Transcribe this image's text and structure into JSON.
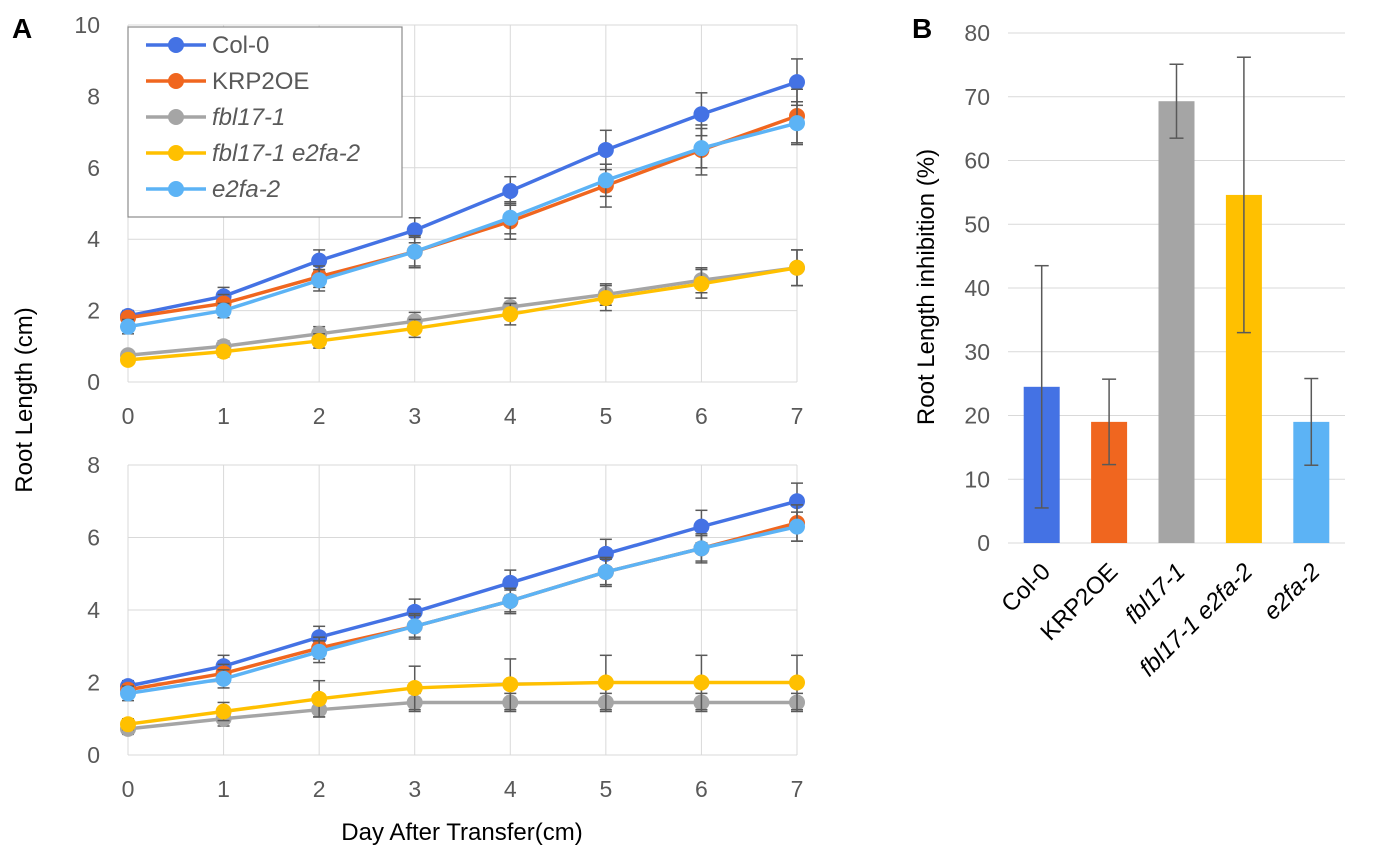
{
  "panels": {
    "a": "A",
    "b": "B"
  },
  "chart_data": [
    {
      "id": "A-top",
      "type": "line",
      "x": [
        0,
        1,
        2,
        3,
        4,
        5,
        6,
        7
      ],
      "ylim": [
        0,
        10
      ],
      "yticks": [
        0,
        2,
        4,
        6,
        8,
        10
      ],
      "grid": true,
      "legend": "top-left",
      "series": [
        {
          "name": "Col-0",
          "color": "#4472E4",
          "values": [
            1.85,
            2.4,
            3.4,
            4.25,
            5.35,
            6.5,
            7.5,
            8.4
          ],
          "err": [
            0.15,
            0.25,
            0.3,
            0.35,
            0.4,
            0.55,
            0.6,
            0.65
          ]
        },
        {
          "name": "KRP2OE",
          "color": "#F0661F",
          "values": [
            1.8,
            2.2,
            2.95,
            3.65,
            4.5,
            5.5,
            6.5,
            7.45
          ],
          "err": [
            0.15,
            0.25,
            0.3,
            0.4,
            0.5,
            0.6,
            0.7,
            0.75
          ]
        },
        {
          "name": "fbl17-1",
          "color": "#A5A5A5",
          "values": [
            0.75,
            1.0,
            1.35,
            1.7,
            2.1,
            2.45,
            2.85,
            3.2
          ],
          "err": [
            0.1,
            0.15,
            0.2,
            0.25,
            0.25,
            0.3,
            0.35,
            0.5
          ]
        },
        {
          "name": "fbl17-1 e2fa-2",
          "color": "#FFC000",
          "values": [
            0.62,
            0.85,
            1.15,
            1.5,
            1.9,
            2.35,
            2.75,
            3.2
          ],
          "err": [
            0.1,
            0.15,
            0.2,
            0.25,
            0.3,
            0.35,
            0.4,
            0.5
          ]
        },
        {
          "name": "e2fa-2",
          "color": "#5CB3F5",
          "values": [
            1.55,
            2.0,
            2.85,
            3.65,
            4.6,
            5.65,
            6.55,
            7.25
          ],
          "err": [
            0.2,
            0.2,
            0.3,
            0.45,
            0.45,
            0.45,
            0.55,
            0.6
          ]
        }
      ]
    },
    {
      "id": "A-bottom",
      "type": "line",
      "x": [
        0,
        1,
        2,
        3,
        4,
        5,
        6,
        7
      ],
      "ylim": [
        0,
        8
      ],
      "yticks": [
        0,
        2,
        4,
        6,
        8
      ],
      "grid": true,
      "xlabel": "Day After Transfer(cm)",
      "series": [
        {
          "name": "Col-0",
          "color": "#4472E4",
          "values": [
            1.9,
            2.45,
            3.25,
            3.95,
            4.75,
            5.55,
            6.3,
            7.0
          ],
          "err": [
            0.15,
            0.3,
            0.3,
            0.35,
            0.35,
            0.4,
            0.45,
            0.5
          ]
        },
        {
          "name": "KRP2OE",
          "color": "#F0661F",
          "values": [
            1.8,
            2.25,
            2.95,
            3.55,
            4.25,
            5.05,
            5.7,
            6.4
          ],
          "err": [
            0.15,
            0.25,
            0.3,
            0.35,
            0.3,
            0.4,
            0.4,
            0.5
          ]
        },
        {
          "name": "fbl17-1",
          "color": "#A5A5A5",
          "values": [
            0.72,
            1.0,
            1.25,
            1.45,
            1.45,
            1.45,
            1.45,
            1.45
          ],
          "err": [
            0.15,
            0.2,
            0.2,
            0.25,
            0.25,
            0.25,
            0.25,
            0.25
          ]
        },
        {
          "name": "fbl17-1 e2fa-2",
          "color": "#FFC000",
          "values": [
            0.85,
            1.2,
            1.55,
            1.85,
            1.95,
            2.0,
            2.0,
            2.0
          ],
          "err": [
            0.15,
            0.25,
            0.5,
            0.6,
            0.7,
            0.75,
            0.75,
            0.75
          ]
        },
        {
          "name": "e2fa-2",
          "color": "#5CB3F5",
          "values": [
            1.7,
            2.1,
            2.85,
            3.55,
            4.25,
            5.05,
            5.7,
            6.3
          ],
          "err": [
            0.2,
            0.25,
            0.3,
            0.3,
            0.35,
            0.35,
            0.35,
            0.4
          ]
        }
      ]
    },
    {
      "id": "B",
      "type": "bar",
      "categories": [
        "Col-0",
        "KRP2OE",
        "fbl17-1",
        "fbl17-1 e2fa-2",
        "e2fa-2"
      ],
      "italic": [
        false,
        false,
        true,
        true,
        true
      ],
      "values": [
        24.5,
        19.0,
        69.3,
        54.6,
        19.0
      ],
      "err": [
        19.0,
        6.7,
        5.8,
        21.6,
        6.8
      ],
      "colors": [
        "#4472E4",
        "#F0661F",
        "#A5A5A5",
        "#FFC000",
        "#5CB3F5"
      ],
      "ylim": [
        0,
        80
      ],
      "yticks": [
        0,
        10,
        20,
        30,
        40,
        50,
        60,
        70,
        80
      ],
      "ylabel": "Root Length inhibition (%)",
      "grid": true
    }
  ],
  "shared": {
    "ylabel_A": "Root Length (cm)"
  }
}
